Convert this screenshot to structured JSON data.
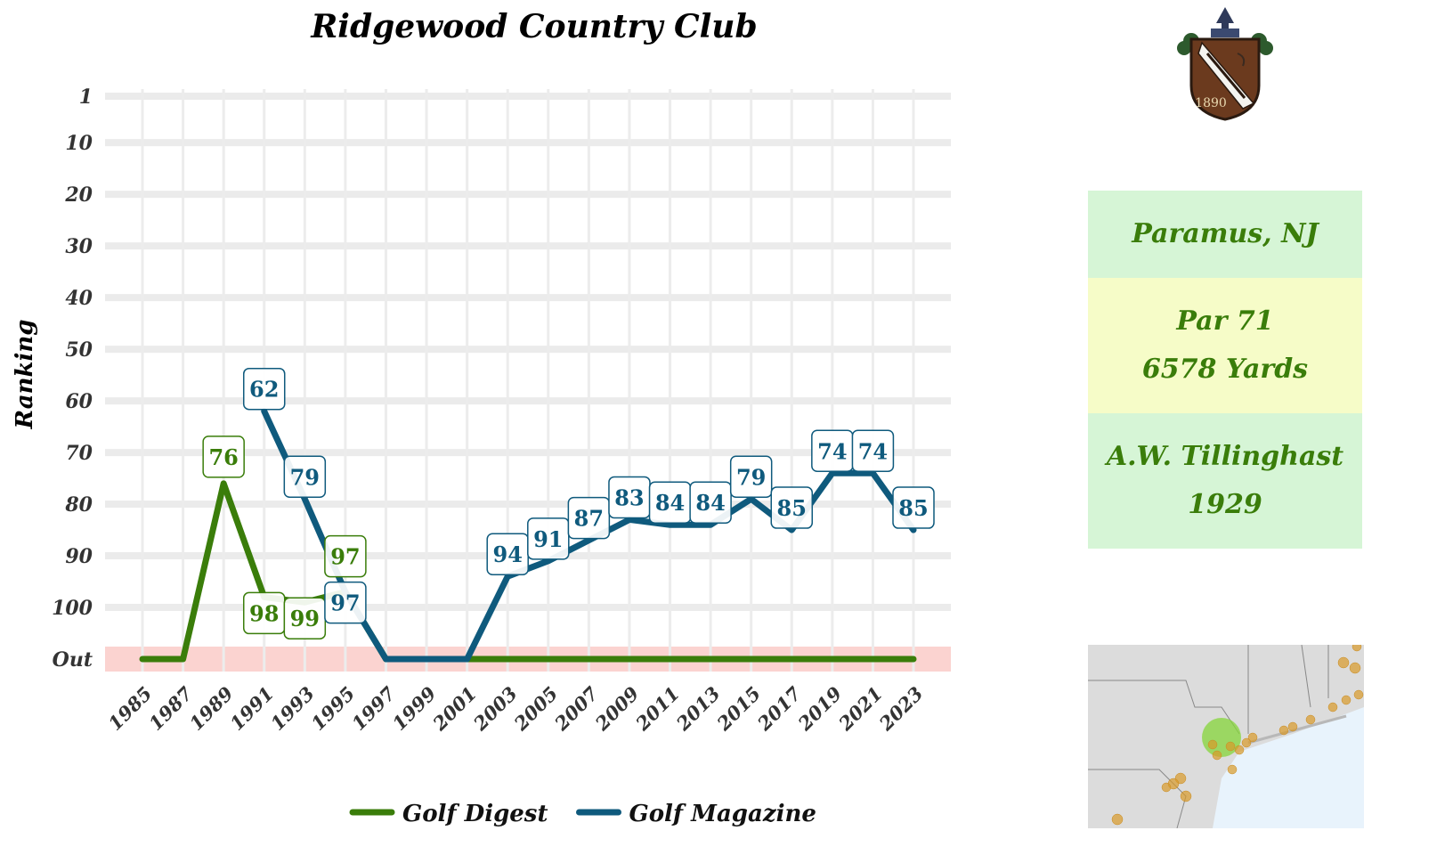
{
  "chart_data": {
    "type": "line",
    "title": "Ridgewood Country Club",
    "ylabel": "Ranking",
    "xlabel": "",
    "y_ticks": [
      "1",
      "10",
      "20",
      "30",
      "40",
      "50",
      "60",
      "70",
      "80",
      "90",
      "100",
      "Out"
    ],
    "x_ticks": [
      "1985",
      "1987",
      "1989",
      "1991",
      "1993",
      "1995",
      "1997",
      "1999",
      "2001",
      "2003",
      "2005",
      "2007",
      "2009",
      "2011",
      "2013",
      "2015",
      "2017",
      "2019",
      "2021",
      "2023"
    ],
    "out_band_color": "#fbd3d0",
    "grid": true,
    "legend_position": "bottom",
    "series": [
      {
        "name": "Golf Digest",
        "color": "#3a7d0a",
        "points": [
          {
            "x": 1985,
            "y": "Out"
          },
          {
            "x": 1987,
            "y": "Out"
          },
          {
            "x": 1989,
            "y": 76
          },
          {
            "x": 1991,
            "y": 98
          },
          {
            "x": 1993,
            "y": 99
          },
          {
            "x": 1995,
            "y": 97
          },
          {
            "x": 1997,
            "y": "Out"
          },
          {
            "x": 1999,
            "y": "Out"
          },
          {
            "x": 2001,
            "y": "Out"
          },
          {
            "x": 2003,
            "y": "Out"
          },
          {
            "x": 2005,
            "y": "Out"
          },
          {
            "x": 2007,
            "y": "Out"
          },
          {
            "x": 2009,
            "y": "Out"
          },
          {
            "x": 2011,
            "y": "Out"
          },
          {
            "x": 2013,
            "y": "Out"
          },
          {
            "x": 2015,
            "y": "Out"
          },
          {
            "x": 2017,
            "y": "Out"
          },
          {
            "x": 2019,
            "y": "Out"
          },
          {
            "x": 2021,
            "y": "Out"
          },
          {
            "x": 2023,
            "y": "Out"
          }
        ]
      },
      {
        "name": "Golf Magazine",
        "color": "#0f5a7d",
        "points": [
          {
            "x": 1991,
            "y": 62
          },
          {
            "x": 1993,
            "y": 79
          },
          {
            "x": 1995,
            "y": 97
          },
          {
            "x": 1997,
            "y": "Out"
          },
          {
            "x": 1999,
            "y": "Out"
          },
          {
            "x": 2001,
            "y": "Out"
          },
          {
            "x": 2003,
            "y": 94
          },
          {
            "x": 2005,
            "y": 91
          },
          {
            "x": 2007,
            "y": 87
          },
          {
            "x": 2009,
            "y": 83
          },
          {
            "x": 2011,
            "y": 84
          },
          {
            "x": 2013,
            "y": 84
          },
          {
            "x": 2015,
            "y": 79
          },
          {
            "x": 2017,
            "y": 85
          },
          {
            "x": 2019,
            "y": 74
          },
          {
            "x": 2021,
            "y": 74
          },
          {
            "x": 2023,
            "y": 85
          }
        ]
      }
    ]
  },
  "course": {
    "location": "Paramus, NJ",
    "par": "Par 71",
    "yards": "6578 Yards",
    "architect": "A.W. Tillinghast",
    "year_built": "1929"
  },
  "logo": {
    "year": "1890"
  },
  "colors": {
    "info_green": "#d6f5d6",
    "info_yellow": "#f6fcc8",
    "text_green": "#3a7d0a"
  }
}
